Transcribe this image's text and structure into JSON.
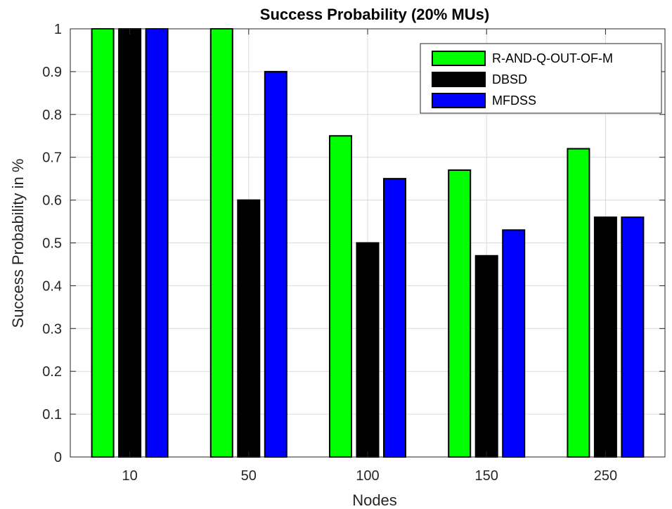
{
  "chart_data": {
    "type": "bar",
    "title": "Success Probability (20% MUs)",
    "xlabel": "Nodes",
    "ylabel": "Success Probability in %",
    "categories": [
      "10",
      "50",
      "100",
      "150",
      "250"
    ],
    "series": [
      {
        "name": "R-AND-Q-OUT-OF-M",
        "color": "#00ff00",
        "values": [
          1.0,
          1.0,
          0.75,
          0.67,
          0.72
        ]
      },
      {
        "name": "DBSD",
        "color": "#000000",
        "values": [
          1.0,
          0.6,
          0.5,
          0.47,
          0.56
        ]
      },
      {
        "name": "MFDSS",
        "color": "#0000ff",
        "values": [
          1.0,
          0.9,
          0.65,
          0.53,
          0.56
        ]
      }
    ],
    "ylim": [
      0,
      1
    ],
    "yticks": [
      0,
      0.1,
      0.2,
      0.3,
      0.4,
      0.5,
      0.6,
      0.7,
      0.8,
      0.9,
      1
    ],
    "ytick_labels": [
      "0",
      "0.1",
      "0.2",
      "0.3",
      "0.4",
      "0.5",
      "0.6",
      "0.7",
      "0.8",
      "0.9",
      "1"
    ],
    "grid": true,
    "legend_position": "top-right"
  }
}
